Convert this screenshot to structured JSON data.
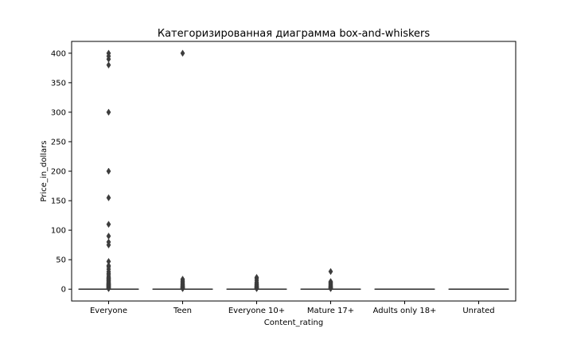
{
  "chart_data": {
    "type": "box",
    "title": "Категоризированная диаграмма box-and-whiskers",
    "xlabel": "Content_rating",
    "ylabel": "Price_in_dollars",
    "ylim": [
      -20,
      420
    ],
    "yticks": [
      0,
      50,
      100,
      150,
      200,
      250,
      300,
      350,
      400
    ],
    "grid": false,
    "categories": [
      "Everyone",
      "Teen",
      "Everyone 10+",
      "Mature 17+",
      "Adults only 18+",
      "Unrated"
    ],
    "boxes": [
      {
        "category": "Everyone",
        "min": 0,
        "q1": 0,
        "median": 0,
        "q3": 0,
        "max": 0,
        "outliers": [
          0.99,
          1.49,
          1.99,
          2.49,
          2.99,
          3.49,
          3.99,
          4.49,
          4.99,
          5.49,
          5.99,
          6.49,
          6.99,
          7.49,
          7.99,
          8.49,
          8.99,
          9.49,
          9.99,
          10.99,
          11.99,
          12.99,
          13.99,
          14.99,
          15.99,
          16.99,
          17.99,
          18.99,
          19.99,
          21.99,
          24.99,
          26.99,
          29.99,
          33.99,
          37.99,
          39.99,
          46.99,
          74.99,
          79.99,
          89.99,
          109.99,
          154.99,
          199.99,
          299.99,
          379.99,
          389.99,
          394.99,
          399.99
        ]
      },
      {
        "category": "Teen",
        "min": 0,
        "q1": 0,
        "median": 0,
        "q3": 0,
        "max": 0,
        "outliers": [
          0.99,
          1.49,
          1.99,
          2.49,
          2.99,
          3.49,
          3.99,
          4.49,
          4.99,
          5.99,
          6.99,
          7.99,
          8.99,
          9.99,
          11.99,
          12.99,
          14.99,
          16.99,
          399.99
        ]
      },
      {
        "category": "Everyone 10+",
        "min": 0,
        "q1": 0,
        "median": 0,
        "q3": 0,
        "max": 0,
        "outliers": [
          0.99,
          1.49,
          1.99,
          2.49,
          2.99,
          3.49,
          3.99,
          4.49,
          4.99,
          5.99,
          6.99,
          7.99,
          8.99,
          9.99,
          11.99,
          14.99,
          17.99,
          19.99
        ]
      },
      {
        "category": "Mature 17+",
        "min": 0,
        "q1": 0,
        "median": 0,
        "q3": 0,
        "max": 0,
        "outliers": [
          0.99,
          1.49,
          1.99,
          2.49,
          2.99,
          3.49,
          3.99,
          4.49,
          4.99,
          5.99,
          6.99,
          7.99,
          8.99,
          9.99,
          10.99,
          11.99,
          12.99,
          29.99
        ]
      },
      {
        "category": "Adults only 18+",
        "min": 0,
        "q1": 0,
        "median": 0,
        "q3": 0,
        "max": 0,
        "outliers": []
      },
      {
        "category": "Unrated",
        "min": 0,
        "q1": 0,
        "median": 0,
        "q3": 0,
        "max": 0,
        "outliers": []
      }
    ],
    "colors": {
      "box_line": "#3d3d3d",
      "outlier": "#3d3d3d",
      "axes": "#000000",
      "background": "#ffffff"
    }
  }
}
